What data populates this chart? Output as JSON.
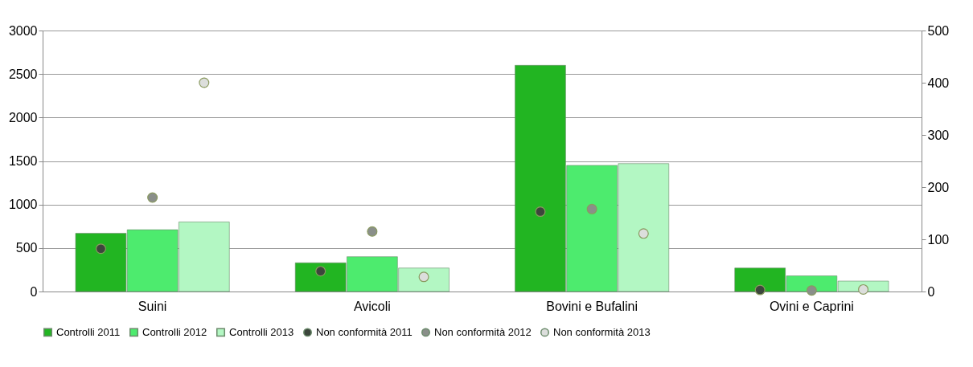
{
  "chart_data": {
    "type": "bar",
    "categories": [
      "Suini",
      "Avicoli",
      "Bovini e Bufalini",
      "Ovini e Caprini"
    ],
    "series": [
      {
        "name": "Controlli 2011",
        "color": "#22b522",
        "values": [
          670,
          330,
          2600,
          270
        ]
      },
      {
        "name": "Controlli 2012",
        "color": "#4deb6e",
        "values": [
          710,
          400,
          1450,
          180
        ]
      },
      {
        "name": "Controlli 2013",
        "color": "#b3f7c3",
        "values": [
          800,
          270,
          1470,
          120
        ]
      },
      {
        "name": "Non conformità 2011",
        "color": "#3c463c",
        "type": "scatter",
        "axis": "y2",
        "values": [
          82,
          39,
          153,
          3
        ]
      },
      {
        "name": "Non conformità 2012",
        "color": "#8a8f8a",
        "type": "scatter",
        "axis": "y2",
        "values": [
          180,
          115,
          158,
          2
        ]
      },
      {
        "name": "Non conformità 2013",
        "color": "#dcdedc",
        "type": "scatter",
        "axis": "y2",
        "values": [
          400,
          28,
          111,
          4
        ]
      }
    ],
    "ylim": [
      0,
      3000
    ],
    "yticks": [
      0,
      500,
      1000,
      1500,
      2000,
      2500,
      3000
    ],
    "y2lim": [
      0,
      500
    ],
    "y2ticks": [
      0,
      100,
      200,
      300,
      400,
      500
    ],
    "grid": "y",
    "legend": "bottom",
    "marker": "circle"
  }
}
